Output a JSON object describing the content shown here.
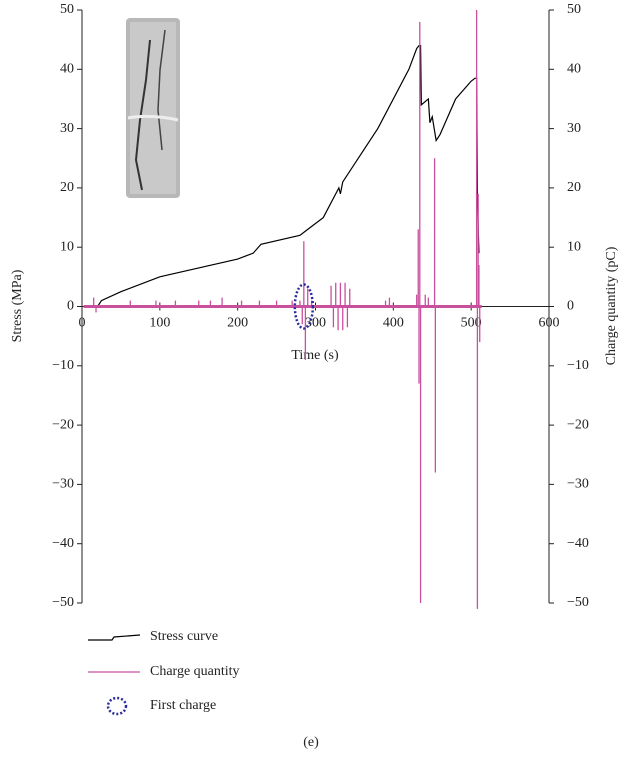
{
  "chart_data": {
    "type": "line",
    "xlabel": "Time (s)",
    "ylabel": "Stress (MPa)",
    "y2label": "Charge quantity (pC)",
    "caption": "(e)",
    "xlim": [
      0,
      600
    ],
    "xticks": [
      0,
      100,
      200,
      300,
      400,
      500,
      600
    ],
    "ylim": [
      -50,
      50
    ],
    "yticks": [
      {
        "value": -50,
        "label": "−50"
      },
      {
        "value": -40,
        "label": "−40"
      },
      {
        "value": -30,
        "label": "−30"
      },
      {
        "value": -20,
        "label": "−20"
      },
      {
        "value": -10,
        "label": "−10"
      },
      0,
      10,
      20,
      30,
      40,
      50
    ],
    "y2lim": [
      -50,
      50
    ],
    "y2ticks": [
      {
        "value": -50,
        "label": "−50"
      },
      {
        "value": -40,
        "label": "−40"
      },
      {
        "value": -30,
        "label": "−30"
      },
      {
        "value": -20,
        "label": "−20"
      },
      {
        "value": -10,
        "label": "−10"
      },
      0,
      10,
      20,
      30,
      40,
      50
    ],
    "series": [
      {
        "name": "Stress curve",
        "color": "#000000",
        "style": "line",
        "x": [
          20,
          25,
          50,
          100,
          150,
          200,
          220,
          230,
          280,
          290,
          310,
          330,
          332,
          335,
          380,
          420,
          430,
          433,
          435,
          436,
          445,
          447,
          450,
          455,
          460,
          480,
          500,
          505,
          507,
          508,
          510
        ],
        "values": [
          0,
          1,
          2.5,
          5,
          6.5,
          8,
          9,
          10.5,
          12,
          13,
          15,
          20,
          19,
          21,
          30,
          40,
          43.5,
          44,
          44,
          34,
          35,
          31,
          32,
          28,
          29,
          35,
          38,
          38.5,
          38.5,
          18,
          9
        ]
      },
      {
        "name": "Charge quantity",
        "color": "#c8509e",
        "style": "stem",
        "axis": "y2",
        "x": [
          15,
          18,
          62,
          95,
          120,
          150,
          165,
          180,
          205,
          228,
          250,
          270,
          280,
          283,
          285,
          287,
          290,
          295,
          320,
          323,
          326,
          329,
          332,
          335,
          338,
          341,
          344,
          390,
          395,
          430,
          432,
          433,
          434,
          435,
          441,
          445,
          453,
          454,
          507,
          508,
          509,
          510,
          511
        ],
        "values": [
          1.5,
          -1,
          1,
          1,
          1,
          1,
          1,
          1.5,
          1,
          1,
          1,
          1,
          1,
          -3,
          11,
          -9,
          3,
          1,
          3.5,
          -3.5,
          4,
          -4,
          4,
          -4,
          4,
          -3.5,
          3,
          1,
          1.5,
          2,
          13,
          -13,
          48,
          -50,
          2,
          1.5,
          25,
          -28,
          50,
          -51,
          19,
          7,
          -6
        ]
      }
    ],
    "first_charge": {
      "name": "First charge",
      "color": "#2b2b9e",
      "x": 285,
      "y": 0
    }
  }
}
